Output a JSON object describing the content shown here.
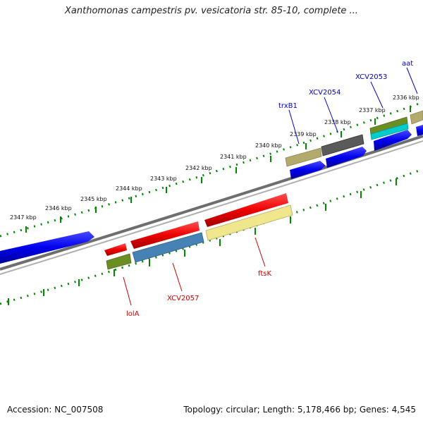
{
  "title": "Xanthomonas campestris pv. vesicatoria str. 85-10, complete ...",
  "accession": "Accession: NC_007508",
  "summary": "Topology: circular; Length: 5,178,466 bp; Genes: 4,545",
  "colors": {
    "forward_strand": "#0000ee",
    "reverse_strand": "#ee0000",
    "tick": "#008800",
    "backbone": "#888888",
    "khaki": "#b3aa6e",
    "dark_grey": "#5a5a5a",
    "olive": "#6b8e23",
    "cyan": "#00cccc",
    "steel_blue": "#4682b4",
    "pale_yellow": "#f0e68c"
  },
  "kbp_labels": [
    "2347 kbp",
    "2346 kbp",
    "2345 kbp",
    "2344 kbp",
    "2343 kbp",
    "2342 kbp",
    "2341 kbp",
    "2340 kbp",
    "2339 kbp",
    "2338 kbp",
    "2337 kbp",
    "2336 kbp"
  ],
  "gene_labels": {
    "top": [
      "trxB1",
      "XCV2054",
      "XCV2053",
      "aat"
    ],
    "bottom": [
      "lolA",
      "XCV2057",
      "ftsK"
    ]
  }
}
